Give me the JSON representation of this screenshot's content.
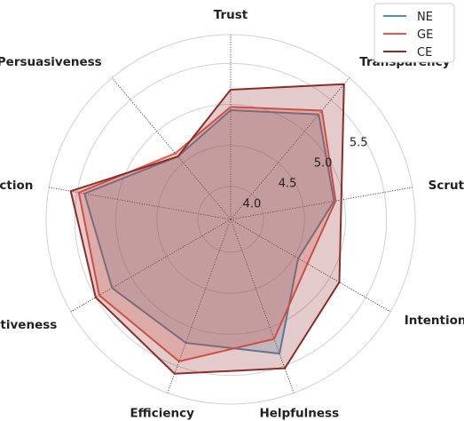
{
  "chart_data": {
    "type": "radar",
    "title": "",
    "axes": [
      "Trust",
      "Transparency",
      "Scrutability",
      "Intention",
      "Helpfulness",
      "Efficiency",
      "Effectiveness",
      "Satisfaction",
      "Persuasiveness"
    ],
    "rlim": [
      3.6,
      5.85
    ],
    "r_ticks": [
      {
        "value": 4.0,
        "label": "4.0"
      },
      {
        "value": 4.5,
        "label": "4.5"
      },
      {
        "value": 5.0,
        "label": "5.0"
      },
      {
        "value": 5.5,
        "label": "5.5"
      }
    ],
    "grid": true,
    "legend_position": "top-right",
    "series": [
      {
        "name": "NE",
        "color": "#4e8fb3",
        "values": [
          4.93,
          5.27,
          4.88,
          4.55,
          5.34,
          5.2,
          5.27,
          5.41,
          4.6
        ]
      },
      {
        "name": "GE",
        "color": "#e8574a",
        "values": [
          4.97,
          5.33,
          4.9,
          4.68,
          5.15,
          5.44,
          5.45,
          5.48,
          4.65
        ]
      },
      {
        "name": "CE",
        "color": "#8b2e2a",
        "values": [
          5.18,
          5.75,
          4.97,
          5.13,
          5.53,
          5.6,
          5.5,
          5.58,
          4.6
        ]
      }
    ]
  }
}
